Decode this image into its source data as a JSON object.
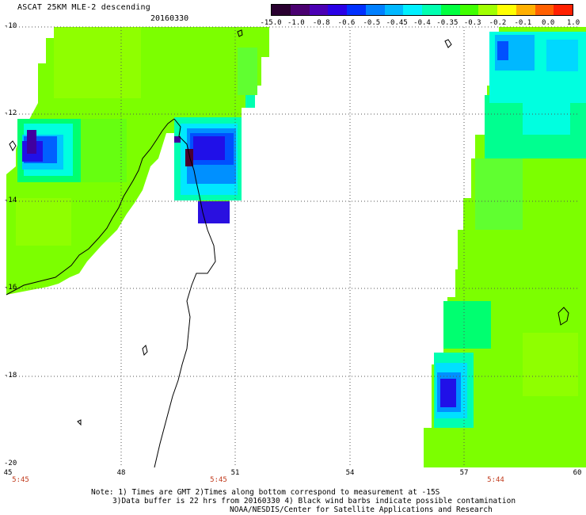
{
  "header": {
    "title": "ASCAT 25KM MLE-2 descending",
    "date": "20160330"
  },
  "colorbar": {
    "labels": [
      "-15.0",
      "-1.0",
      "-0.8",
      "-0.6",
      "-0.5",
      "-0.45",
      "-0.4",
      "-0.35",
      "-0.3",
      "-0.2",
      "-0.1",
      "0.0",
      "1.0"
    ],
    "colors": [
      "#2a0030",
      "#4a0070",
      "#4b00b4",
      "#2a00e6",
      "#0030ff",
      "#0080ff",
      "#00b8ff",
      "#00f0ff",
      "#00ffb0",
      "#00ff40",
      "#40ff00",
      "#a0ff00",
      "#ffff00",
      "#ffb000",
      "#ff6000",
      "#ff2000"
    ]
  },
  "map": {
    "lat_labels": [
      "-10",
      "-12",
      "-14",
      "-16",
      "-18",
      "-20"
    ],
    "lon_labels": [
      "45",
      "48",
      "51",
      "54",
      "57",
      "60"
    ],
    "time_labels": [
      "5:45",
      "5:45",
      "5:44"
    ],
    "colors": {
      "green": "#7cff00",
      "light_green": "#9cff00",
      "cyan": "#00ffe0",
      "teal": "#00d0ff",
      "blue": "#0060ff",
      "deep_blue": "#2010e8",
      "purple": "#4000a0",
      "coast": "#000000",
      "grid": "#555555"
    }
  },
  "notes": {
    "line1": "Note: 1) Times are GMT 2)Times along bottom correspond to measurement at -15S",
    "line2": "3)Data buffer is 22 hrs from 20160330 4) Black wind barbs indicate possible contamination",
    "line3": "NOAA/NESDIS/Center for Satellite Applications and Research"
  }
}
